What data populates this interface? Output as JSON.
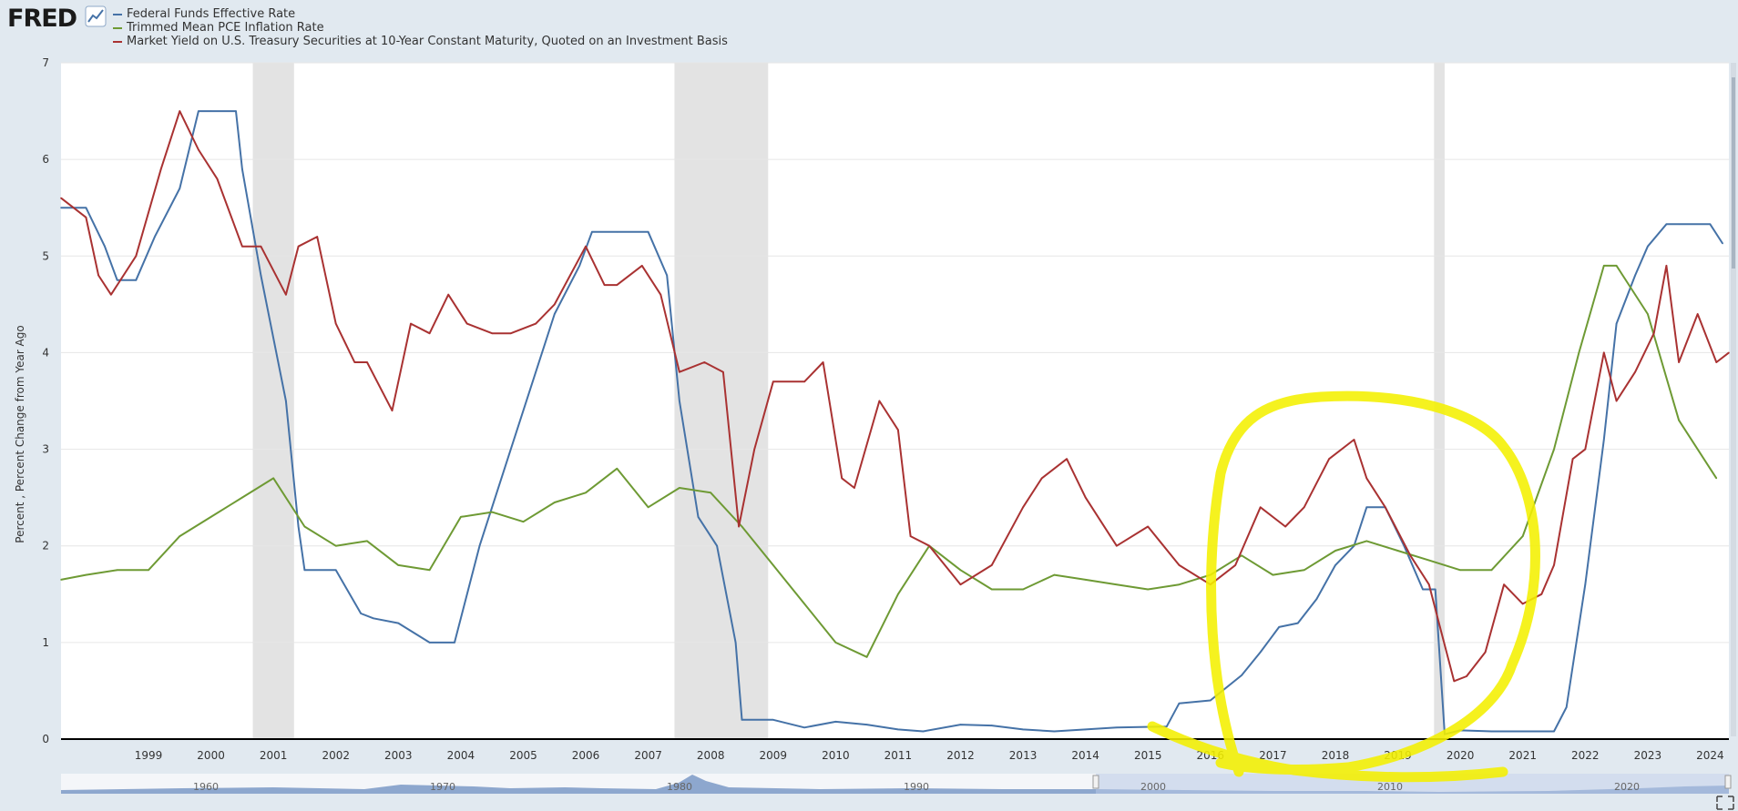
{
  "header": {
    "logo_text": "FRED"
  },
  "colors": {
    "fedfunds": "#4572a7",
    "pce": "#6e9a34",
    "treasury": "#a93232",
    "annotation": "#f4f000",
    "recession": "#e3e3e3",
    "navigator": "#b8c9e6"
  },
  "chart_data": {
    "type": "line",
    "title": "",
    "ylabel": "Percent , Percent Change from Year Ago",
    "xlabel": "",
    "ylim": [
      0,
      7
    ],
    "xlim": [
      1998.1,
      2024.8
    ],
    "yticks": [
      0,
      1,
      2,
      3,
      4,
      5,
      6,
      7
    ],
    "xticks": [
      "1999",
      "2000",
      "2001",
      "2002",
      "2003",
      "2004",
      "2005",
      "2006",
      "2007",
      "2008",
      "2009",
      "2010",
      "2011",
      "2012",
      "2013",
      "2014",
      "2015",
      "2016",
      "2017",
      "2018",
      "2019",
      "2020",
      "2021",
      "2022",
      "2023",
      "2024"
    ],
    "recessions": [
      [
        2001.17,
        2001.83
      ],
      [
        2007.92,
        2009.42
      ],
      [
        2020.08,
        2020.25
      ]
    ],
    "navigator_labels": [
      "1960",
      "1970",
      "1980",
      "1990",
      "2000",
      "2010",
      "2020"
    ],
    "series": [
      {
        "name": "Federal Funds Effective Rate",
        "color": "#4572a7",
        "x": [
          1998.1,
          1998.5,
          1998.8,
          1999.0,
          1999.3,
          1999.6,
          2000.0,
          2000.3,
          2000.5,
          2000.9,
          2001.0,
          2001.3,
          2001.7,
          2001.9,
          2002.0,
          2002.5,
          2002.9,
          2003.1,
          2003.5,
          2004.0,
          2004.4,
          2004.8,
          2005.2,
          2005.7,
          2006.0,
          2006.4,
          2006.6,
          2007.0,
          2007.5,
          2007.8,
          2008.0,
          2008.3,
          2008.6,
          2008.9,
          2009.0,
          2009.5,
          2010.0,
          2010.5,
          2011.0,
          2011.5,
          2011.9,
          2012.5,
          2013.0,
          2013.5,
          2014.0,
          2014.5,
          2015.0,
          2015.8,
          2016.0,
          2016.5,
          2017.0,
          2017.3,
          2017.6,
          2017.9,
          2018.2,
          2018.5,
          2018.8,
          2019.0,
          2019.3,
          2019.6,
          2019.9,
          2020.1,
          2020.25,
          2020.5,
          2021.0,
          2021.5,
          2022.0,
          2022.2,
          2022.5,
          2022.8,
          2023.0,
          2023.3,
          2023.5,
          2023.8,
          2024.0,
          2024.5,
          2024.7
        ],
        "y": [
          5.5,
          5.5,
          5.1,
          4.75,
          4.75,
          5.2,
          5.7,
          6.5,
          6.5,
          6.5,
          5.9,
          4.8,
          3.5,
          2.2,
          1.75,
          1.75,
          1.3,
          1.25,
          1.2,
          1.0,
          1.0,
          2.0,
          2.8,
          3.8,
          4.4,
          4.9,
          5.25,
          5.25,
          5.25,
          4.8,
          3.5,
          2.3,
          2.0,
          1.0,
          0.2,
          0.2,
          0.12,
          0.18,
          0.15,
          0.1,
          0.08,
          0.15,
          0.14,
          0.1,
          0.08,
          0.1,
          0.12,
          0.13,
          0.37,
          0.4,
          0.66,
          0.9,
          1.16,
          1.2,
          1.45,
          1.8,
          2.0,
          2.4,
          2.4,
          2.0,
          1.55,
          1.55,
          0.05,
          0.09,
          0.08,
          0.08,
          0.08,
          0.33,
          1.6,
          3.1,
          4.3,
          4.8,
          5.1,
          5.33,
          5.33,
          5.33,
          5.13
        ]
      },
      {
        "name": "Trimmed Mean PCE Inflation Rate",
        "color": "#6e9a34",
        "x": [
          1998.1,
          1998.5,
          1999.0,
          1999.5,
          2000.0,
          2000.5,
          2001.0,
          2001.5,
          2002.0,
          2002.5,
          2003.0,
          2003.5,
          2004.0,
          2004.5,
          2005.0,
          2005.5,
          2006.0,
          2006.5,
          2007.0,
          2007.5,
          2008.0,
          2008.5,
          2009.0,
          2009.5,
          2010.0,
          2010.5,
          2011.0,
          2011.5,
          2012.0,
          2012.5,
          2013.0,
          2013.5,
          2014.0,
          2014.5,
          2015.0,
          2015.5,
          2016.0,
          2016.5,
          2017.0,
          2017.5,
          2018.0,
          2018.5,
          2019.0,
          2019.5,
          2020.0,
          2020.5,
          2021.0,
          2021.5,
          2022.0,
          2022.4,
          2022.8,
          2023.0,
          2023.5,
          2024.0,
          2024.5,
          2024.6
        ],
        "y": [
          1.65,
          1.7,
          1.75,
          1.75,
          2.1,
          2.3,
          2.5,
          2.7,
          2.2,
          2.0,
          2.05,
          1.8,
          1.75,
          2.3,
          2.35,
          2.25,
          2.45,
          2.55,
          2.8,
          2.4,
          2.6,
          2.55,
          2.2,
          1.8,
          1.4,
          1.0,
          0.85,
          1.5,
          2.0,
          1.75,
          1.55,
          1.55,
          1.7,
          1.65,
          1.6,
          1.55,
          1.6,
          1.7,
          1.9,
          1.7,
          1.75,
          1.95,
          2.05,
          1.95,
          1.85,
          1.75,
          1.75,
          2.1,
          3.0,
          4.0,
          4.9,
          4.9,
          4.4,
          3.3,
          2.8,
          2.7
        ]
      },
      {
        "name": "Market Yield on U.S. Treasury Securities at 10-Year Constant Maturity, Quoted on an Investment Basis",
        "color": "#a93232",
        "x": [
          1998.1,
          1998.5,
          1998.7,
          1998.9,
          1999.3,
          1999.7,
          2000.0,
          2000.3,
          2000.6,
          2001.0,
          2001.3,
          2001.7,
          2001.9,
          2002.2,
          2002.5,
          2002.8,
          2003.0,
          2003.4,
          2003.7,
          2004.0,
          2004.3,
          2004.6,
          2005.0,
          2005.3,
          2005.7,
          2006.0,
          2006.5,
          2006.8,
          2007.0,
          2007.4,
          2007.7,
          2008.0,
          2008.4,
          2008.7,
          2008.95,
          2009.2,
          2009.5,
          2010.0,
          2010.3,
          2010.6,
          2010.8,
          2011.2,
          2011.5,
          2011.7,
          2012.0,
          2012.5,
          2013.0,
          2013.5,
          2013.8,
          2014.2,
          2014.5,
          2015.0,
          2015.5,
          2016.0,
          2016.5,
          2016.9,
          2017.3,
          2017.7,
          2018.0,
          2018.4,
          2018.8,
          2019.0,
          2019.3,
          2019.7,
          2020.0,
          2020.2,
          2020.4,
          2020.6,
          2020.9,
          2021.2,
          2021.5,
          2021.8,
          2022.0,
          2022.3,
          2022.5,
          2022.8,
          2023.0,
          2023.3,
          2023.6,
          2023.8,
          2024.0,
          2024.3,
          2024.6,
          2024.8
        ],
        "y": [
          5.6,
          5.4,
          4.8,
          4.6,
          5.0,
          5.9,
          6.5,
          6.1,
          5.8,
          5.1,
          5.1,
          4.6,
          5.1,
          5.2,
          4.3,
          3.9,
          3.9,
          3.4,
          4.3,
          4.2,
          4.6,
          4.3,
          4.2,
          4.2,
          4.3,
          4.5,
          5.1,
          4.7,
          4.7,
          4.9,
          4.6,
          3.8,
          3.9,
          3.8,
          2.2,
          3.0,
          3.7,
          3.7,
          3.9,
          2.7,
          2.6,
          3.5,
          3.2,
          2.1,
          2.0,
          1.6,
          1.8,
          2.4,
          2.7,
          2.9,
          2.5,
          2.0,
          2.2,
          1.8,
          1.6,
          1.8,
          2.4,
          2.2,
          2.4,
          2.9,
          3.1,
          2.7,
          2.4,
          1.9,
          1.6,
          1.1,
          0.6,
          0.65,
          0.9,
          1.6,
          1.4,
          1.5,
          1.8,
          2.9,
          3.0,
          4.0,
          3.5,
          3.8,
          4.2,
          4.9,
          3.9,
          4.4,
          3.9,
          4.0
        ]
      }
    ]
  }
}
